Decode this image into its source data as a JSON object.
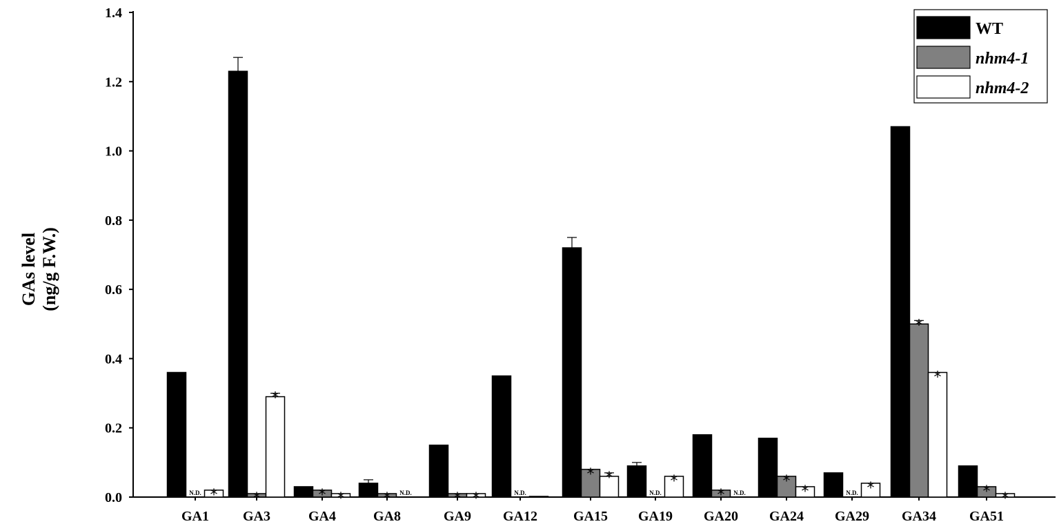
{
  "chart_data": {
    "type": "bar",
    "ylabel": [
      "GAs level",
      "(ng/g F.W.)"
    ],
    "xlabel": "",
    "ylim": [
      0,
      1.4
    ],
    "yticks": [
      "0.0",
      "0.2",
      "0.4",
      "0.6",
      "0.8",
      "1.0",
      "1.2",
      "1.4"
    ],
    "categories": [
      "GA1",
      "GA3",
      "GA4",
      "GA8",
      "GA9",
      "GA12",
      "GA15",
      "GA19",
      "GA20",
      "GA24",
      "GA29",
      "GA34",
      "GA51"
    ],
    "legend_position": "top-right",
    "not_detected_label": "N.D.",
    "significance_marker": "*",
    "series": [
      {
        "name": "WT",
        "italic": false,
        "color": "#000000",
        "values": [
          0.36,
          1.23,
          0.03,
          0.04,
          0.15,
          0.35,
          0.72,
          0.09,
          0.18,
          0.17,
          0.07,
          1.07,
          0.09
        ],
        "errors": [
          0,
          0.04,
          0,
          0.01,
          0,
          0,
          0.03,
          0.01,
          0,
          0,
          0,
          0,
          0
        ],
        "not_detected": [
          false,
          false,
          false,
          false,
          false,
          false,
          false,
          false,
          false,
          false,
          false,
          false,
          false
        ],
        "significant": [
          false,
          false,
          false,
          false,
          false,
          false,
          false,
          false,
          false,
          false,
          false,
          false,
          false
        ]
      },
      {
        "name": "nhm4-1",
        "italic": true,
        "color": "#808080",
        "values": [
          0,
          0.01,
          0.02,
          0.01,
          0.01,
          0,
          0.08,
          0,
          0.02,
          0.06,
          0,
          0.5,
          0.03
        ],
        "errors": [
          0,
          0,
          0,
          0,
          0,
          0,
          0,
          0,
          0,
          0,
          0,
          0.01,
          0
        ],
        "not_detected": [
          true,
          false,
          false,
          false,
          false,
          true,
          false,
          true,
          false,
          false,
          true,
          false,
          false
        ],
        "significant": [
          false,
          true,
          true,
          true,
          true,
          false,
          true,
          false,
          true,
          true,
          false,
          true,
          true
        ]
      },
      {
        "name": "nhm4-2",
        "italic": true,
        "color": "#ffffff",
        "values": [
          0.02,
          0.29,
          0.01,
          0,
          0.01,
          0,
          0.06,
          0.06,
          0,
          0.03,
          0.04,
          0.36,
          0.01
        ],
        "errors": [
          0,
          0.01,
          0,
          0,
          0,
          0,
          0.01,
          0,
          0,
          0,
          0,
          0,
          0
        ],
        "not_detected": [
          false,
          false,
          false,
          true,
          false,
          false,
          false,
          false,
          true,
          false,
          false,
          false,
          false
        ],
        "significant": [
          true,
          true,
          true,
          false,
          true,
          false,
          true,
          true,
          false,
          true,
          true,
          true,
          true
        ]
      }
    ]
  }
}
